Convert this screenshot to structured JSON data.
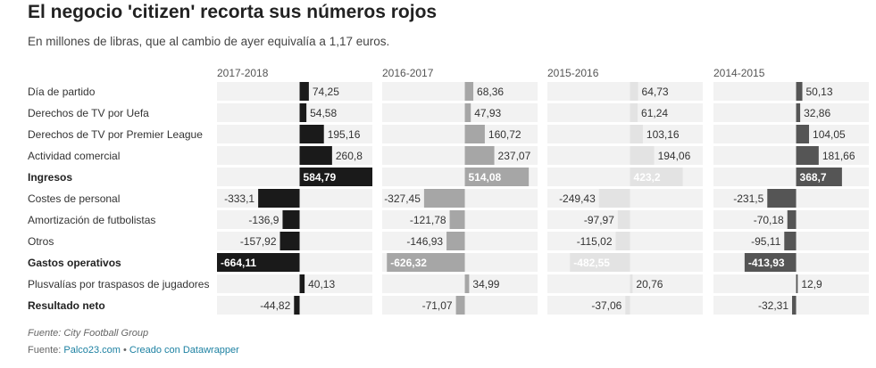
{
  "title": "El negocio 'citizen' recorta sus números rojos",
  "subtitle": "En millones de libras, que al cambio de ayer equivalía a 1,17 euros.",
  "footer": {
    "source_note": "Fuente: City Football Group",
    "credits_prefix": "Fuente: ",
    "credits_site": "Palco23.com",
    "credits_sep": " • ",
    "credits_tool": "Creado con Datawrapper"
  },
  "chart_data": {
    "type": "bar",
    "title": "El negocio 'citizen' recorta sus números rojos",
    "subtitle": "En millones de libras, que al cambio de ayer equivalía a 1,17 euros.",
    "categories": [
      "Día de partido",
      "Derechos de TV por Uefa",
      "Derechos de TV por Premier League",
      "Actividad comercial",
      "Ingresos",
      "Costes de personal",
      "Amortización de futbolistas",
      "Otros",
      "Gastos operativos",
      "Plusvalías por traspasos de jugadores",
      "Resultado neto"
    ],
    "bold_categories": [
      "Ingresos",
      "Gastos operativos",
      "Resultado neto"
    ],
    "series": [
      {
        "name": "2017-2018",
        "values": [
          74.25,
          54.58,
          195.16,
          260.8,
          584.79,
          -333.1,
          -136.9,
          -157.92,
          -664.11,
          40.13,
          -44.82
        ],
        "labels": [
          "74,25",
          "54,58",
          "195,16",
          "260,8",
          "584,79",
          "-333,1",
          "-136,9",
          "-157,92",
          "-664,11",
          "40,13",
          "-44,82"
        ]
      },
      {
        "name": "2016-2017",
        "values": [
          68.36,
          47.93,
          160.72,
          237.07,
          514.08,
          -327.45,
          -121.78,
          -146.93,
          -626.32,
          34.99,
          -71.07
        ],
        "labels": [
          "68,36",
          "47,93",
          "160,72",
          "237,07",
          "514,08",
          "-327,45",
          "-121,78",
          "-146,93",
          "-626,32",
          "34,99",
          "-71,07"
        ]
      },
      {
        "name": "2015-2016",
        "values": [
          64.73,
          61.24,
          103.16,
          194.06,
          423.2,
          -249.43,
          -97.97,
          -115.02,
          -482.55,
          20.76,
          -37.06
        ],
        "labels": [
          "64,73",
          "61,24",
          "103,16",
          "194,06",
          "423,2",
          "-249,43",
          "-97,97",
          "-115,02",
          "-482,55",
          "20,76",
          "-37,06"
        ]
      },
      {
        "name": "2014-2015",
        "values": [
          50.13,
          32.86,
          104.05,
          181.66,
          368.7,
          -231.5,
          -70.18,
          -95.11,
          -413.93,
          12.9,
          -32.31
        ],
        "labels": [
          "50,13",
          "32,86",
          "104,05",
          "181,66",
          "368,7",
          "-231,5",
          "-70,18",
          "-95,11",
          "-413,93",
          "12,9",
          "-32,31"
        ]
      }
    ],
    "xlim": [
      -664.11,
      584.79
    ],
    "colors": {
      "background_bar": "#f2f2f2",
      "2017-2018": "#1a1a1a",
      "2016-2017": "#a6a6a6",
      "2015-2016": "#e3e3e3",
      "2014-2015": "#555555",
      "label_dark": "#333333",
      "label_light": "#ffffff"
    }
  }
}
